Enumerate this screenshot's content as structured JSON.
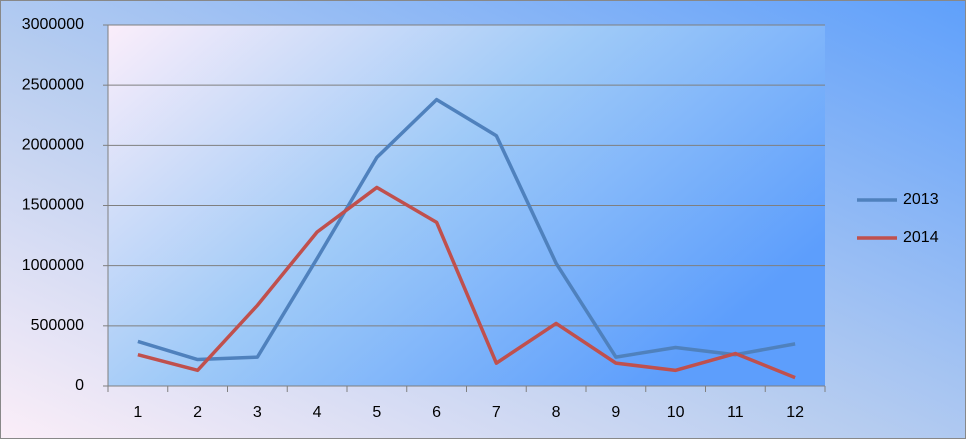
{
  "chart_data": {
    "type": "line",
    "categories": [
      "1",
      "2",
      "3",
      "4",
      "5",
      "6",
      "7",
      "8",
      "9",
      "10",
      "11",
      "12"
    ],
    "series": [
      {
        "name": "2013",
        "color": "#4f81bd",
        "values": [
          370000,
          220000,
          240000,
          1060000,
          1900000,
          2380000,
          2080000,
          1020000,
          240000,
          320000,
          260000,
          350000
        ]
      },
      {
        "name": "2014",
        "color": "#c0504d",
        "values": [
          260000,
          130000,
          670000,
          1280000,
          1650000,
          1360000,
          190000,
          520000,
          190000,
          130000,
          270000,
          70000
        ]
      }
    ],
    "ylim": [
      0,
      3000000
    ],
    "yticks": [
      0,
      500000,
      1000000,
      1500000,
      2000000,
      2500000,
      3000000
    ],
    "grid": true,
    "legend": "right"
  }
}
